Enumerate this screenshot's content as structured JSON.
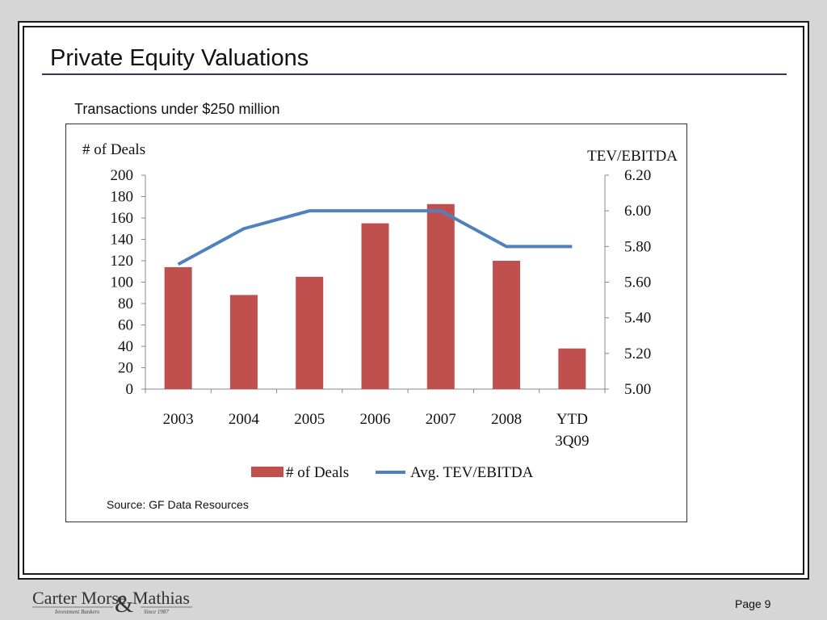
{
  "slide": {
    "title": "Private Equity Valuations",
    "subtitle": "Transactions under $250 million",
    "source": "Source: GF Data Resources",
    "page_label": "Page 9",
    "colors": {
      "title_rule": "#2e3a6c",
      "bar": "#c0504d",
      "line": "#4f81bd",
      "frame": "#1a1a1a",
      "background": "#d6d6d6"
    }
  },
  "logo": {
    "text_left": "Carter Morse",
    "ampersand": "&",
    "text_right": "Mathias",
    "tagline_left": "Investment Bankers",
    "tagline_right": "Since 1987"
  },
  "chart_data": {
    "type": "bar",
    "title": "",
    "categories": [
      "2003",
      "2004",
      "2005",
      "2006",
      "2007",
      "2008",
      "YTD\n3Q09"
    ],
    "series": [
      {
        "name": "# of Deals",
        "type": "bar",
        "axis": "left",
        "color": "#c0504d",
        "values": [
          114,
          88,
          105,
          155,
          173,
          120,
          38
        ]
      },
      {
        "name": "Avg. TEV/EBITDA",
        "type": "line",
        "axis": "right",
        "color": "#4f81bd",
        "values": [
          5.7,
          5.9,
          6.0,
          6.0,
          6.0,
          5.8,
          5.8
        ]
      }
    ],
    "y_left": {
      "label": "# of Deals",
      "ylim": [
        0,
        200
      ],
      "ticks": [
        "0",
        "20",
        "40",
        "60",
        "80",
        "100",
        "120",
        "140",
        "160",
        "180",
        "200"
      ]
    },
    "y_right": {
      "label": "TEV/EBITDA",
      "ylim": [
        5.0,
        6.2
      ],
      "ticks": [
        "5.00",
        "5.20",
        "5.40",
        "5.60",
        "5.80",
        "6.00",
        "6.20"
      ]
    },
    "legend": {
      "position": "bottom",
      "entries": [
        "# of Deals",
        "Avg. TEV/EBITDA"
      ]
    },
    "grid": false
  }
}
